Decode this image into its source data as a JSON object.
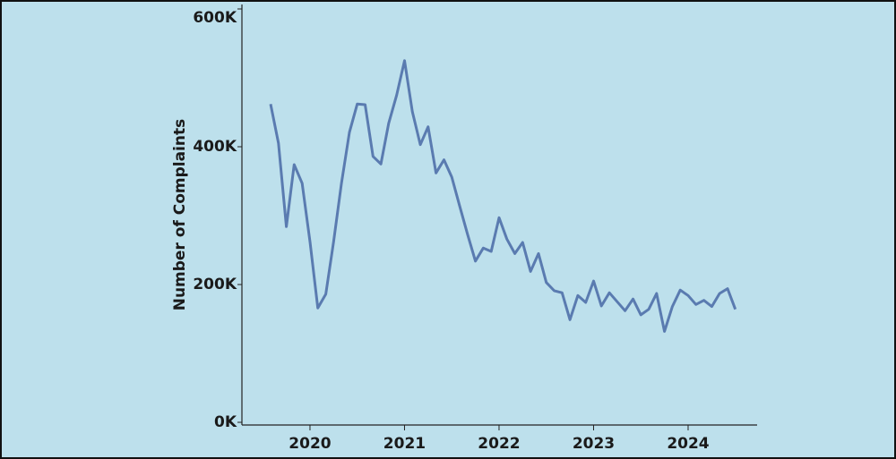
{
  "chart_data": {
    "type": "line",
    "y_label": "Number of Complaints",
    "x": [
      2019.583,
      2019.667,
      2019.75,
      2019.833,
      2019.917,
      2020,
      2020.083,
      2020.167,
      2020.25,
      2020.333,
      2020.417,
      2020.5,
      2020.583,
      2020.667,
      2020.75,
      2020.833,
      2020.917,
      2021,
      2021.083,
      2021.167,
      2021.25,
      2021.333,
      2021.417,
      2021.5,
      2021.583,
      2021.667,
      2021.75,
      2021.833,
      2021.917,
      2022,
      2022.083,
      2022.167,
      2022.25,
      2022.333,
      2022.417,
      2022.5,
      2022.583,
      2022.667,
      2022.75,
      2022.833,
      2022.917,
      2023,
      2023.083,
      2023.167,
      2023.25,
      2023.333,
      2023.417,
      2023.5,
      2023.583,
      2023.667,
      2023.75,
      2023.833,
      2023.917,
      2024,
      2024.083,
      2024.167,
      2024.25,
      2024.333,
      2024.417,
      2024.5
    ],
    "series": [
      {
        "name": "Complaints",
        "color": "#5a7bb0",
        "values": [
          462,
          405,
          284,
          374,
          347,
          262,
          166,
          186,
          262,
          347,
          421,
          462,
          461,
          386,
          375,
          434,
          475,
          525,
          451,
          403,
          429,
          362,
          381,
          356,
          314,
          273,
          234,
          253,
          248,
          297,
          266,
          245,
          261,
          219,
          245,
          203,
          191,
          188,
          149,
          184,
          174,
          205,
          169,
          188,
          175,
          162,
          179,
          156,
          164,
          187,
          132,
          168,
          192,
          184,
          171,
          177,
          168,
          187,
          194,
          164
        ]
      }
    ],
    "xlim": [
      2019.28,
      2024.73
    ],
    "xticks": [
      2020,
      2021,
      2022,
      2023,
      2024
    ],
    "ylim": [
      0,
      600
    ],
    "yticks": [
      {
        "value": 0,
        "label": "0K"
      },
      {
        "value": 200,
        "label": "200K"
      },
      {
        "value": 400,
        "label": "400K"
      },
      {
        "value": 600,
        "label": "600K"
      }
    ]
  }
}
